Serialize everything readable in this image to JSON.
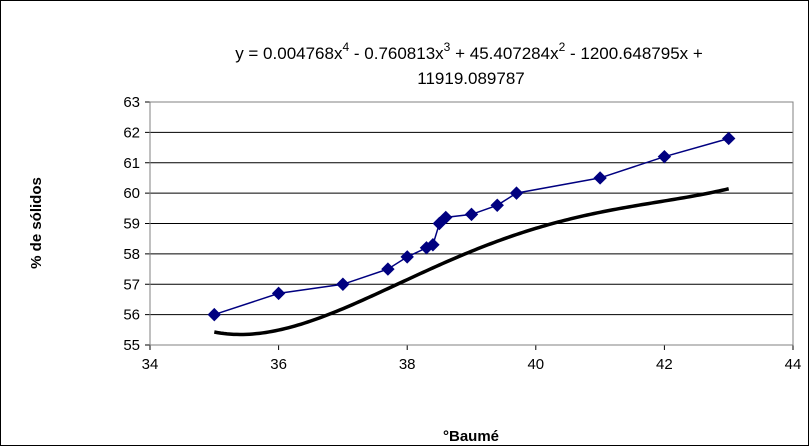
{
  "chart_data": {
    "type": "scatter",
    "title": "",
    "xlabel": "°Baumé",
    "ylabel": "% de sólidos",
    "xlim": [
      34,
      44
    ],
    "ylim": [
      55,
      63
    ],
    "xticks": [
      "34",
      "36",
      "38",
      "40",
      "42",
      "44"
    ],
    "yticks": [
      "55",
      "56",
      "57",
      "58",
      "59",
      "60",
      "61",
      "62",
      "63"
    ],
    "grid": "horizontal",
    "legend": "none",
    "series": [
      {
        "marker": "diamond",
        "color": "#000080",
        "connected": true,
        "points": [
          [
            35.0,
            56.0
          ],
          [
            36.0,
            56.7
          ],
          [
            37.0,
            57.0
          ],
          [
            37.7,
            57.5
          ],
          [
            38.0,
            57.9
          ],
          [
            38.3,
            58.2
          ],
          [
            38.4,
            58.3
          ],
          [
            38.5,
            59.0
          ],
          [
            38.6,
            59.2
          ],
          [
            39.0,
            59.3
          ],
          [
            39.4,
            59.6
          ],
          [
            39.7,
            60.0
          ],
          [
            41.0,
            60.5
          ],
          [
            42.0,
            61.2
          ],
          [
            43.0,
            61.8
          ]
        ]
      }
    ],
    "trendline": {
      "type": "polynomial",
      "order": 4,
      "color": "#000000",
      "equation_parts": {
        "part1": "y = 0.004768x",
        "exp1": "4",
        "part2": " - 0.760813x",
        "exp2": "3",
        "part3": " + 45.407284x",
        "exp3": "2",
        "part4": " - 1200.648795x +",
        "line2": "11919.089787"
      },
      "coefficients": [
        0.004768,
        -0.760813,
        45.407284,
        -1200.648795,
        11919.089787
      ]
    }
  }
}
